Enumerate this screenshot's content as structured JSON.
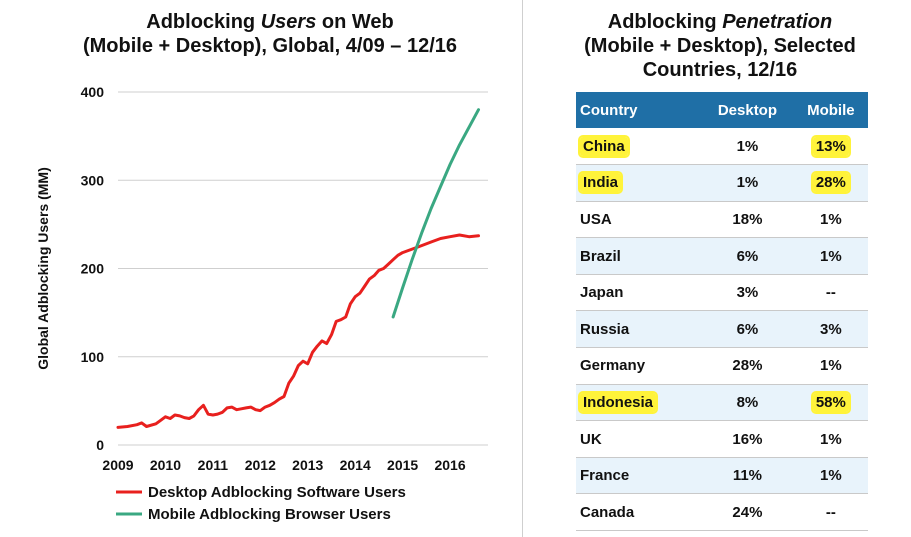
{
  "left_title": [
    "Adblocking ",
    "Users",
    " on Web",
    "(Mobile + Desktop), Global, 4/09 – 12/16"
  ],
  "right_title": [
    "Adblocking ",
    "Penetration",
    "(Mobile + Desktop), Selected",
    "Countries, 12/16"
  ],
  "chart_data": [
    {
      "type": "line",
      "title": "Adblocking Users on Web (Mobile + Desktop), Global, 4/09 – 12/16",
      "ylabel": "Global Adblocking Users (MM)",
      "xlabel": "",
      "xlim": [
        2009,
        2016.8
      ],
      "ylim": [
        0,
        400
      ],
      "xticks": [
        "2009",
        "2010",
        "2011",
        "2012",
        "2013",
        "2014",
        "2015",
        "2016"
      ],
      "yticks": [
        "0",
        "100",
        "200",
        "300",
        "400"
      ],
      "grid": true,
      "legend": "bottom",
      "series": [
        {
          "name": "Desktop Adblocking Software Users",
          "color": "#e8201e",
          "x": [
            2009.0,
            2009.2,
            2009.4,
            2009.5,
            2009.6,
            2009.8,
            2009.9,
            2010.0,
            2010.1,
            2010.2,
            2010.3,
            2010.4,
            2010.5,
            2010.6,
            2010.7,
            2010.8,
            2010.9,
            2011.0,
            2011.1,
            2011.2,
            2011.3,
            2011.4,
            2011.5,
            2011.6,
            2011.7,
            2011.8,
            2011.9,
            2012.0,
            2012.1,
            2012.2,
            2012.3,
            2012.4,
            2012.5,
            2012.6,
            2012.7,
            2012.8,
            2012.9,
            2013.0,
            2013.1,
            2013.2,
            2013.3,
            2013.4,
            2013.5,
            2013.6,
            2013.7,
            2013.8,
            2013.9,
            2014.0,
            2014.1,
            2014.2,
            2014.3,
            2014.4,
            2014.5,
            2014.6,
            2014.7,
            2014.8,
            2014.9,
            2015.0,
            2015.2,
            2015.4,
            2015.6,
            2015.8,
            2016.0,
            2016.2,
            2016.4,
            2016.6
          ],
          "values": [
            20,
            21,
            23,
            25,
            21,
            24,
            28,
            32,
            30,
            34,
            33,
            31,
            30,
            33,
            40,
            45,
            35,
            34,
            35,
            37,
            42,
            43,
            40,
            41,
            42,
            43,
            40,
            39,
            43,
            45,
            48,
            52,
            55,
            70,
            78,
            90,
            95,
            92,
            105,
            112,
            118,
            115,
            125,
            140,
            142,
            145,
            160,
            168,
            172,
            180,
            188,
            192,
            198,
            200,
            205,
            210,
            215,
            218,
            222,
            226,
            230,
            234,
            236,
            238,
            236,
            237
          ]
        },
        {
          "name": "Mobile Adblocking Browser Users",
          "color": "#3aa882",
          "x": [
            2014.8,
            2015.0,
            2015.2,
            2015.4,
            2015.6,
            2015.8,
            2016.0,
            2016.2,
            2016.4,
            2016.6
          ],
          "values": [
            145,
            178,
            210,
            240,
            268,
            293,
            318,
            340,
            360,
            380
          ]
        }
      ]
    },
    {
      "type": "table",
      "columns": [
        "Country",
        "Desktop",
        "Mobile"
      ],
      "rows": [
        [
          "China",
          "1%",
          "13%"
        ],
        [
          "India",
          "1%",
          "28%"
        ],
        [
          "USA",
          "18%",
          "1%"
        ],
        [
          "Brazil",
          "6%",
          "1%"
        ],
        [
          "Japan",
          "3%",
          "--"
        ],
        [
          "Russia",
          "6%",
          "3%"
        ],
        [
          "Germany",
          "28%",
          "1%"
        ],
        [
          "Indonesia",
          "8%",
          "58%"
        ],
        [
          "UK",
          "16%",
          "1%"
        ],
        [
          "France",
          "11%",
          "1%"
        ],
        [
          "Canada",
          "24%",
          "--"
        ]
      ],
      "highlighted_rows": [
        "China",
        "India",
        "Indonesia"
      ],
      "header_color": "#1f6fa6",
      "highlight_color": "#fff33a"
    }
  ]
}
